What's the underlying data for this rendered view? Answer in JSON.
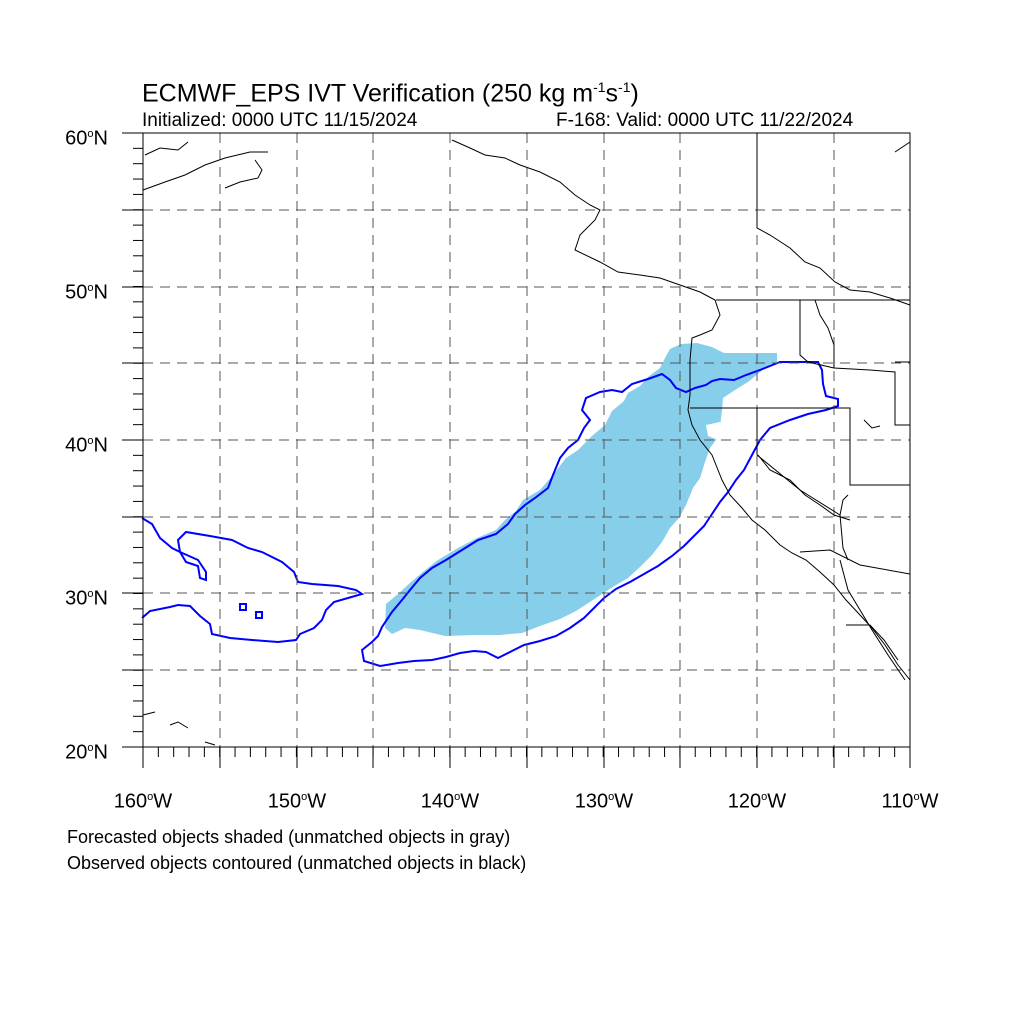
{
  "title": {
    "main": "ECMWF_EPS IVT Verification (250 kg m",
    "sup1": "-1",
    "mid": "s",
    "sup2": "-1",
    "end": ")"
  },
  "init_label": "Initialized: 0000 UTC 11/15/2024",
  "valid_label": "F-168: Valid: 0000 UTC 11/22/2024",
  "lat_labels": [
    {
      "deg": "60",
      "hemi": "N"
    },
    {
      "deg": "50",
      "hemi": "N"
    },
    {
      "deg": "40",
      "hemi": "N"
    },
    {
      "deg": "30",
      "hemi": "N"
    },
    {
      "deg": "20",
      "hemi": "N"
    }
  ],
  "lon_labels": [
    {
      "deg": "160",
      "hemi": "W"
    },
    {
      "deg": "150",
      "hemi": "W"
    },
    {
      "deg": "140",
      "hemi": "W"
    },
    {
      "deg": "130",
      "hemi": "W"
    },
    {
      "deg": "120",
      "hemi": "W"
    },
    {
      "deg": "110",
      "hemi": "W"
    }
  ],
  "notes": {
    "forecast": "Forecasted objects shaded (unmatched objects in gray)",
    "observed": "Observed objects contoured (unmatched objects in black)"
  },
  "colors": {
    "forecast_fill": "#87ceeb",
    "observed_contour": "#0000ff",
    "coastline": "#000000",
    "grid": "#555555"
  }
}
